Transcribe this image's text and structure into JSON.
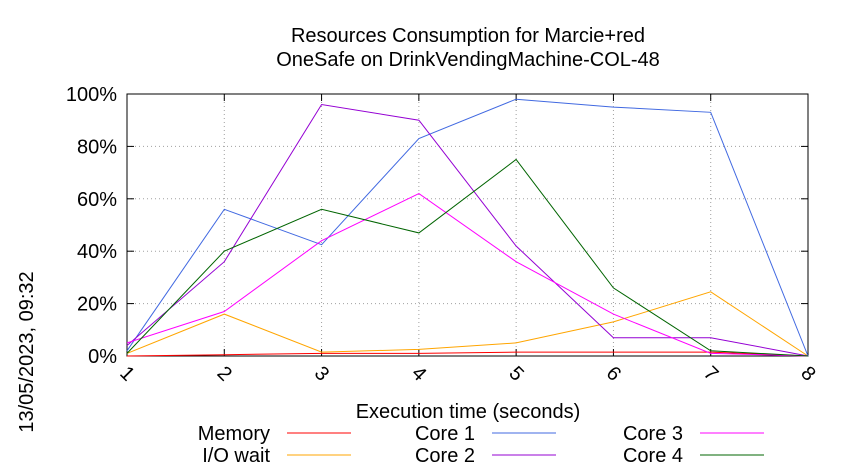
{
  "side_label": "13/05/2023, 09:32",
  "chart_data": {
    "type": "line",
    "title": "Resources Consumption for Marcie+red",
    "subtitle": "OneSafe on DrinkVendingMachine-COL-48",
    "xlabel": "Execution time (seconds)",
    "ylabel": "",
    "xlim": [
      1,
      8
    ],
    "ylim": [
      0,
      100
    ],
    "x_ticks": [
      "1",
      "2",
      "3",
      "4",
      "5",
      "6",
      "7",
      "8"
    ],
    "y_ticks": [
      "0%",
      "20%",
      "40%",
      "60%",
      "80%",
      "100%"
    ],
    "grid": true,
    "legend_position": "bottom",
    "x": [
      1,
      2,
      3,
      4,
      5,
      6,
      7,
      8
    ],
    "series": [
      {
        "name": "Memory",
        "color": "#ff0000",
        "values": [
          0,
          0.5,
          1,
          1,
          1.5,
          1.5,
          1.5,
          0
        ]
      },
      {
        "name": "I/O wait",
        "color": "#ffa500",
        "values": [
          1,
          16,
          1.5,
          2.5,
          5,
          13,
          24.5,
          0
        ]
      },
      {
        "name": "Core 1",
        "color": "#4169e1",
        "values": [
          2,
          56,
          42.5,
          83,
          98,
          95,
          93,
          0
        ]
      },
      {
        "name": "Core 2",
        "color": "#9400d3",
        "values": [
          4,
          36,
          96,
          90,
          42,
          7,
          7,
          0
        ]
      },
      {
        "name": "Core 3",
        "color": "#ff00ff",
        "values": [
          5,
          17,
          44,
          62,
          36,
          16,
          1,
          0
        ]
      },
      {
        "name": "Core 4",
        "color": "#006400",
        "values": [
          1,
          40,
          56,
          47,
          75,
          26,
          2,
          0
        ]
      }
    ]
  }
}
